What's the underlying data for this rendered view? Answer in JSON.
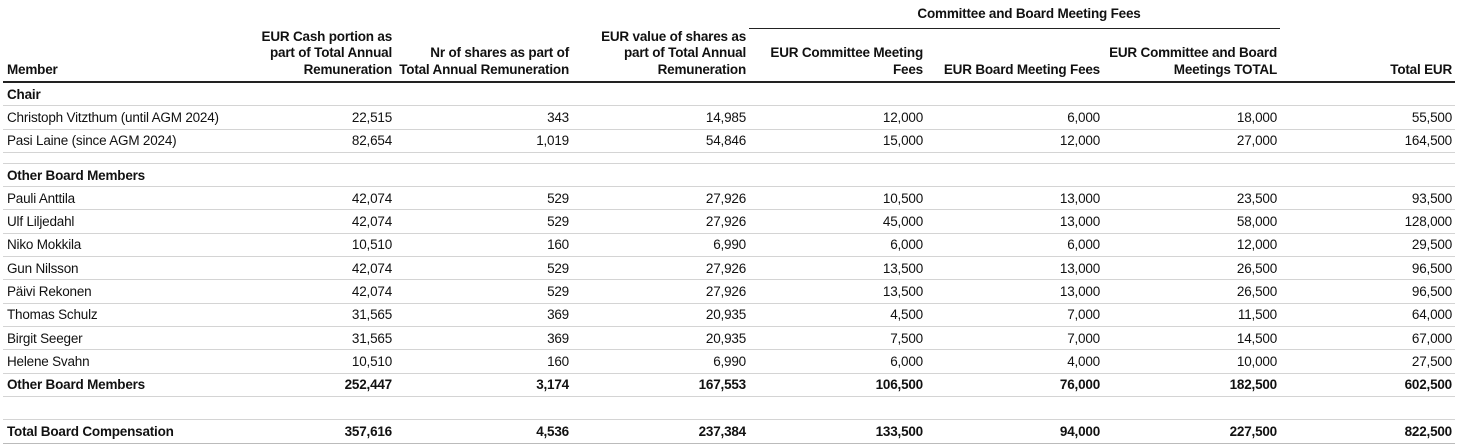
{
  "group_header": "Committee and Board Meeting Fees",
  "headers": [
    "Member",
    "EUR Cash portion as part of Total Annual Remuneration",
    "Nr of shares as part of Total Annual Remuneration",
    "EUR value of shares as part of Total Annual Remuneration",
    "EUR Committee Meeting Fees",
    "EUR Board Meeting Fees",
    "EUR Committee and Board Meetings TOTAL",
    "Total EUR"
  ],
  "chair": {
    "label": "Chair",
    "rows": [
      [
        "Christoph Vitzthum (until AGM 2024)",
        "22,515",
        "343",
        "14,985",
        "12,000",
        "6,000",
        "18,000",
        "55,500"
      ],
      [
        "Pasi Laine (since AGM 2024)",
        "82,654",
        "1,019",
        "54,846",
        "15,000",
        "12,000",
        "27,000",
        "164,500"
      ]
    ]
  },
  "others": {
    "label": "Other Board Members",
    "rows": [
      [
        "Pauli Anttila",
        "42,074",
        "529",
        "27,926",
        "10,500",
        "13,000",
        "23,500",
        "93,500"
      ],
      [
        "Ulf Liljedahl",
        "42,074",
        "529",
        "27,926",
        "45,000",
        "13,000",
        "58,000",
        "128,000"
      ],
      [
        "Niko Mokkila",
        "10,510",
        "160",
        "6,990",
        "6,000",
        "6,000",
        "12,000",
        "29,500"
      ],
      [
        "Gun Nilsson",
        "42,074",
        "529",
        "27,926",
        "13,500",
        "13,000",
        "26,500",
        "96,500"
      ],
      [
        "Päivi Rekonen",
        "42,074",
        "529",
        "27,926",
        "13,500",
        "13,000",
        "26,500",
        "96,500"
      ],
      [
        "Thomas Schulz",
        "31,565",
        "369",
        "20,935",
        "4,500",
        "7,000",
        "11,500",
        "64,000"
      ],
      [
        "Birgit Seeger",
        "31,565",
        "369",
        "20,935",
        "7,500",
        "7,000",
        "14,500",
        "67,000"
      ],
      [
        "Helene Svahn",
        "10,510",
        "160",
        "6,990",
        "6,000",
        "4,000",
        "10,000",
        "27,500"
      ]
    ],
    "subtotal": [
      "Other Board Members",
      "252,447",
      "3,174",
      "167,553",
      "106,500",
      "76,000",
      "182,500",
      "602,500"
    ]
  },
  "total": [
    "Total Board Compensation",
    "357,616",
    "4,536",
    "237,384",
    "133,500",
    "94,000",
    "227,500",
    "822,500"
  ]
}
